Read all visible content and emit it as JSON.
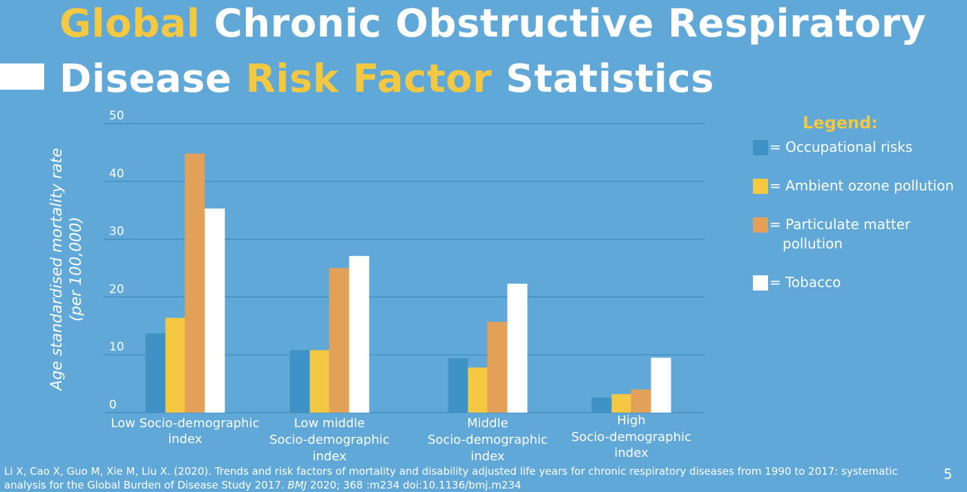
{
  "title": {
    "line1": {
      "highlight": "Global",
      "rest": " Chronic Obstructive Respiratory"
    },
    "line2": {
      "start": "Disease ",
      "highlight": "Risk Factor",
      "end": " Statistics"
    }
  },
  "colors": {
    "background": "#5fa8d8",
    "highlight": "#f5c842",
    "gridline": "#3d8cbf"
  },
  "legend": {
    "title": "Legend:",
    "items": [
      {
        "label": "= Occupational risks",
        "color": "#3f92c6"
      },
      {
        "label": "= Ambient ozone pollution",
        "color": "#f5c842"
      },
      {
        "label": [
          "= Particulate matter",
          "pollution"
        ],
        "color": "#e2a059"
      },
      {
        "label": "= Tobacco",
        "color": "#ffffff"
      }
    ]
  },
  "chart_data": {
    "type": "bar",
    "categories": [
      [
        "Low Socio-demographic",
        "index"
      ],
      [
        "Low middle",
        "Socio-demographic",
        "index"
      ],
      [
        "Middle",
        "Socio-demographic",
        "index"
      ],
      [
        "High",
        "Socio-demographic",
        "index"
      ]
    ],
    "series": [
      {
        "name": "Occupational risks",
        "color": "#3f92c6",
        "values": [
          13.7,
          10.8,
          9.4,
          2.6
        ]
      },
      {
        "name": "Ambient ozone pollution",
        "color": "#f5c842",
        "values": [
          16.4,
          10.8,
          7.8,
          3.2
        ]
      },
      {
        "name": "Particulate matter pollution",
        "color": "#e2a059",
        "values": [
          44.8,
          25.0,
          15.7,
          4.0
        ]
      },
      {
        "name": "Tobacco",
        "color": "#ffffff",
        "values": [
          35.3,
          27.1,
          22.3,
          9.5
        ]
      }
    ],
    "ylabel": [
      "Age standardised mortality rate",
      "(per 100,000)"
    ],
    "xlabel": "",
    "ylim": [
      0,
      50
    ],
    "yticks": [
      0,
      10,
      20,
      30,
      40,
      50
    ],
    "grid": true,
    "legend_position": "right"
  },
  "citation": {
    "pre": "Li X, Cao X, Guo M, Xie M, Liu X. (2020). Trends and risk factors of mortality and disability adjusted life years for chronic respiratory diseases from 1990 to 2017: systematic analysis for the Global Burden of Disease Study 2017. ",
    "journal": "BMJ",
    "post": " 2020;  368 :m234 doi:10.1136/bmj.m234"
  },
  "page_number": "5"
}
